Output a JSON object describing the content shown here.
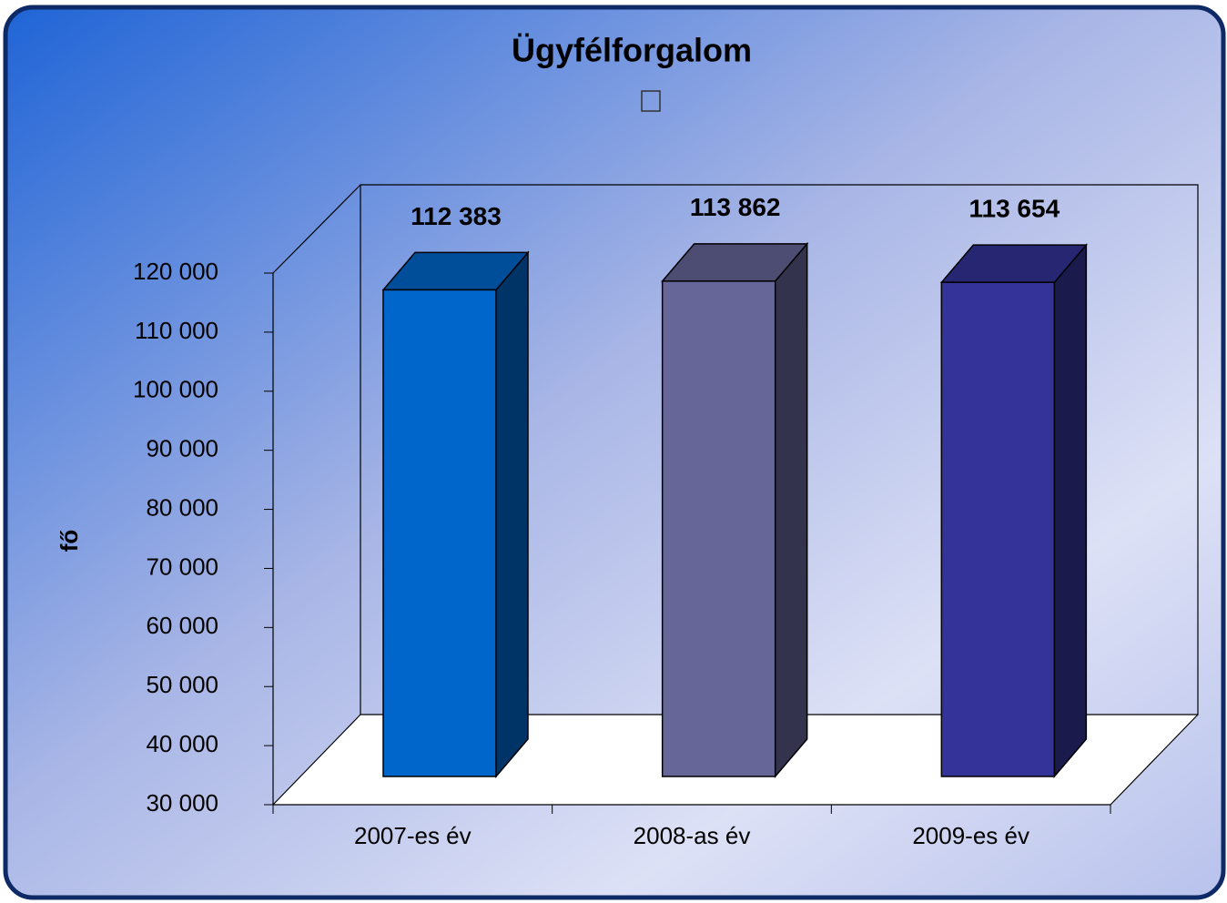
{
  "chart_data": {
    "type": "bar3d",
    "title": "Ügyfélforgalom",
    "y_label": "fő",
    "categories": [
      "2007-es év",
      "2008-as év",
      "2009-es év"
    ],
    "values": [
      112383,
      113862,
      113654
    ],
    "value_labels": [
      "112 383",
      "113 862",
      "113 654"
    ],
    "colors": [
      "#0066cc",
      "#666699",
      "#333399"
    ],
    "ylim": [
      30000,
      120000
    ],
    "yticks": [
      {
        "value": 30000,
        "label": "30 000"
      },
      {
        "value": 40000,
        "label": "40 000"
      },
      {
        "value": 50000,
        "label": "50 000"
      },
      {
        "value": 60000,
        "label": "60 000"
      },
      {
        "value": 70000,
        "label": "70 000"
      },
      {
        "value": 80000,
        "label": "80 000"
      },
      {
        "value": 90000,
        "label": "90 000"
      },
      {
        "value": 100000,
        "label": "100 000"
      },
      {
        "value": 110000,
        "label": "110 000"
      },
      {
        "value": 120000,
        "label": "120 000"
      }
    ]
  }
}
